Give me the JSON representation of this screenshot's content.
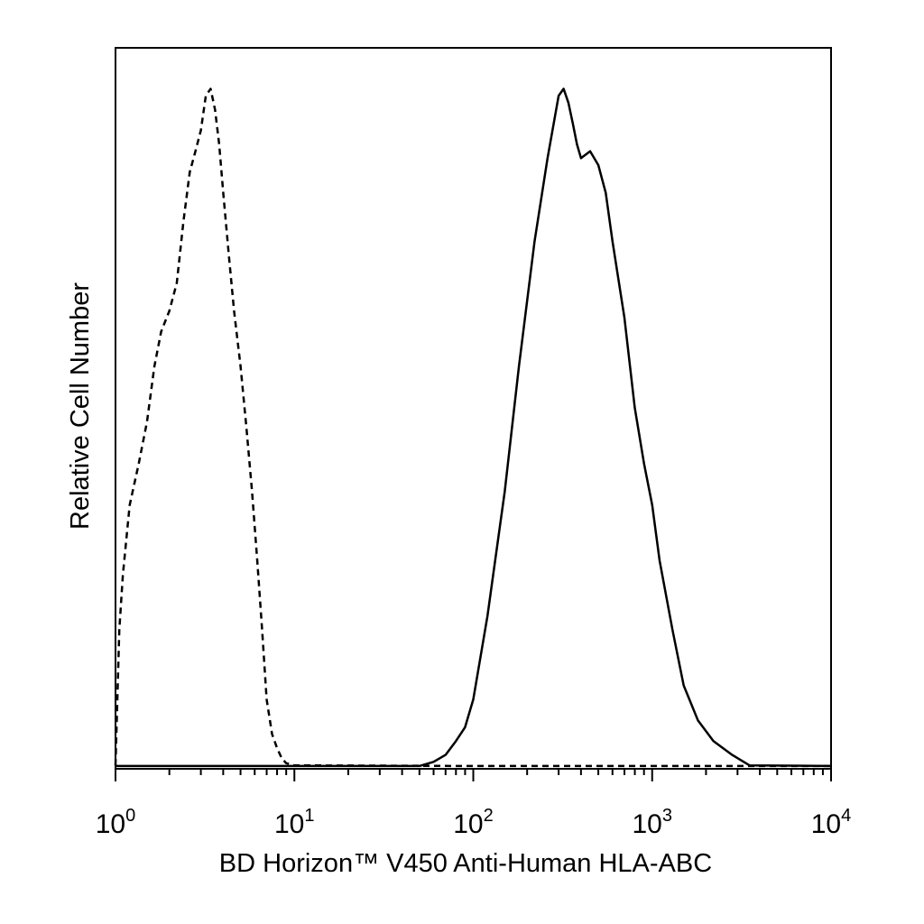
{
  "chart_data": {
    "type": "line",
    "title": "",
    "xlabel": "BD Horizon™ V450 Anti-Human HLA-ABC",
    "ylabel": "Relative Cell Number",
    "x_scale": "log",
    "xlim": [
      1,
      10000
    ],
    "ylim": [
      0,
      100
    ],
    "grid": false,
    "legend": "none",
    "x_ticks": [
      {
        "base": "10",
        "exp": "0",
        "value": 1
      },
      {
        "base": "10",
        "exp": "1",
        "value": 10
      },
      {
        "base": "10",
        "exp": "2",
        "value": 100
      },
      {
        "base": "10",
        "exp": "3",
        "value": 1000
      },
      {
        "base": "10",
        "exp": "4",
        "value": 10000
      }
    ],
    "series": [
      {
        "style": "dashed",
        "color": "#000000",
        "x": [
          1.0,
          1.05,
          1.1,
          1.2,
          1.35,
          1.5,
          1.65,
          1.8,
          2.0,
          2.2,
          2.4,
          2.6,
          2.8,
          3.0,
          3.2,
          3.4,
          3.6,
          3.8,
          4.0,
          4.3,
          4.6,
          5.0,
          5.4,
          5.8,
          6.2,
          6.6,
          7.0,
          7.5,
          8.0,
          8.5,
          9.0,
          10.0,
          100.0,
          1000.0,
          10000.0
        ],
        "y": [
          0.5,
          20,
          28,
          38,
          44,
          50,
          58,
          63,
          66,
          70,
          79,
          86,
          89,
          92,
          97,
          98,
          95,
          90,
          83,
          74,
          66,
          58,
          49,
          40,
          30,
          20,
          10,
          5,
          3,
          1.5,
          0.8,
          0.5,
          0.4,
          0.4,
          0.4
        ]
      },
      {
        "style": "solid",
        "color": "#000000",
        "x": [
          1.0,
          10.0,
          50.0,
          60.0,
          70.0,
          80.0,
          90.0,
          100.0,
          120.0,
          150.0,
          180.0,
          220.0,
          260.0,
          300.0,
          320.0,
          340.0,
          360.0,
          380.0,
          400.0,
          450.0,
          500.0,
          550.0,
          600.0,
          700.0,
          800.0,
          900.0,
          1000.0,
          1100.0,
          1300.0,
          1500.0,
          1800.0,
          2200.0,
          2800.0,
          3500.0,
          10000.0
        ],
        "y": [
          0.4,
          0.4,
          0.4,
          1,
          2,
          4,
          6,
          10,
          22,
          40,
          58,
          76,
          88,
          97,
          98,
          96,
          93,
          90,
          88,
          89,
          87,
          83,
          76,
          65,
          52,
          44,
          38,
          30,
          20,
          12,
          7,
          4,
          2,
          0.5,
          0.4
        ]
      }
    ]
  }
}
